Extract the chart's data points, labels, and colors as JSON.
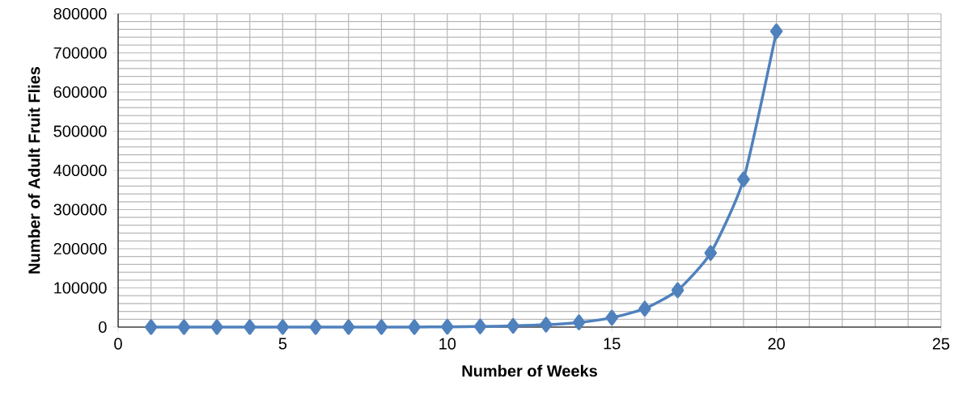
{
  "chart_data": {
    "type": "line",
    "xlabel": "Number of Weeks",
    "ylabel": "Number of Adult Fruit Flies",
    "x": [
      1,
      2,
      3,
      4,
      5,
      6,
      7,
      8,
      9,
      10,
      11,
      12,
      13,
      14,
      15,
      16,
      17,
      18,
      19,
      20
    ],
    "series": [
      {
        "color": "#4f81bd",
        "values": [
          0,
          0,
          0,
          0,
          0,
          0,
          0,
          0,
          0,
          700,
          1500,
          3000,
          6000,
          12000,
          24000,
          47000,
          94000,
          189000,
          377000,
          755000
        ]
      }
    ],
    "xlim": [
      0,
      25
    ],
    "xticks": [
      0,
      5,
      10,
      15,
      20,
      25
    ],
    "ylim": [
      0,
      800000
    ],
    "yticks": [
      0,
      100000,
      200000,
      300000,
      400000,
      500000,
      600000,
      700000,
      800000
    ],
    "grid": true,
    "marker": "diamond",
    "line_style": "solid"
  }
}
